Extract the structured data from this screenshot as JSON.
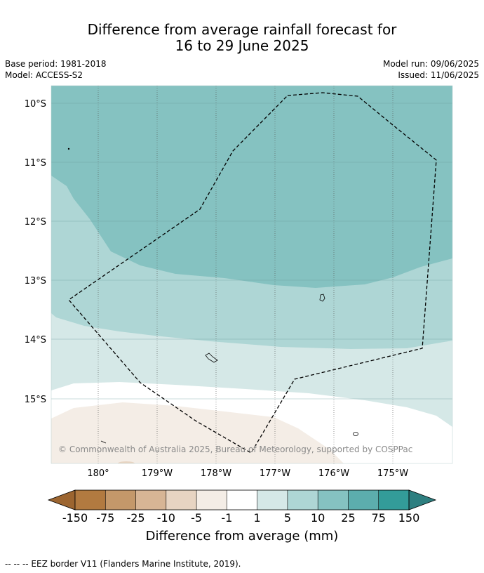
{
  "title_line1": "Difference from average rainfall forecast for",
  "title_line2": "16 to 29 June 2025",
  "base_period": "Base period: 1981-2018",
  "model": "Model: ACCESS-S2",
  "model_run": "Model run: 09/06/2025",
  "issued": "Issued: 11/06/2025",
  "lat_labels": [
    "10°S",
    "11°S",
    "12°S",
    "13°S",
    "14°S",
    "15°S"
  ],
  "lon_labels": [
    "180°",
    "179°W",
    "178°W",
    "177°W",
    "176°W",
    "175°W"
  ],
  "credit": "© Commonwealth of Australia 2025, Bureau of Meteorology, supported by COSPPac",
  "legend": {
    "title": "Difference from average (mm)",
    "labels": [
      "-150",
      "-75",
      "-25",
      "-10",
      "-5",
      "-1",
      "1",
      "5",
      "10",
      "25",
      "75",
      "150"
    ],
    "colors": [
      "#9c6530",
      "#b27a40",
      "#c4986a",
      "#d7b595",
      "#e7d4c2",
      "#f4ede6",
      "#ffffff",
      "#d5e8e7",
      "#aed6d5",
      "#85c2c1",
      "#5cadad",
      "#339c99",
      "#2e7f80"
    ]
  },
  "footnote": "-- -- -- EEZ border V11 (Flanders Marine Institute, 2019)."
}
